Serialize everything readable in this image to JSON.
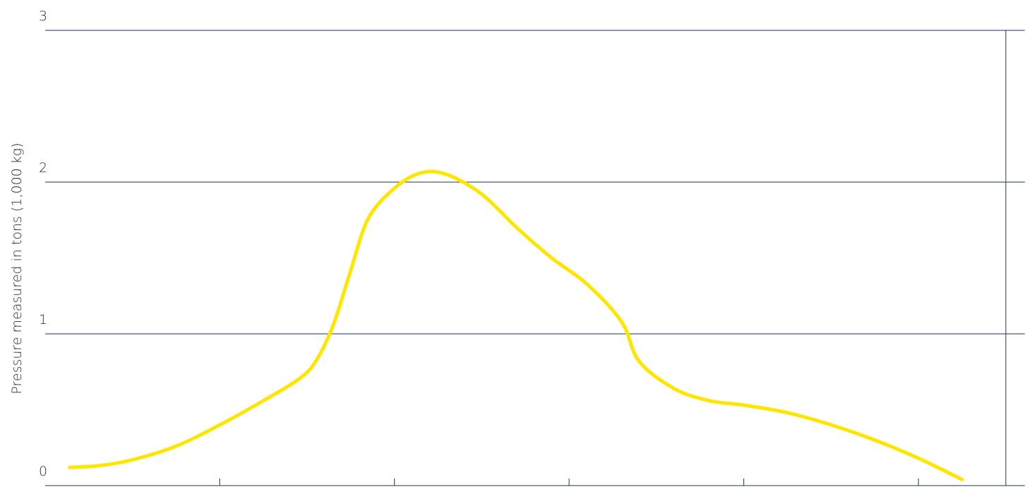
{
  "chart_data": {
    "type": "line",
    "title": "",
    "xlabel": "",
    "ylabel": "Pressure measured in tons (1,000 kg)",
    "ylim": [
      0,
      3
    ],
    "xlim": [
      0,
      11
    ],
    "yticks": [
      {
        "value": 0,
        "label": "0"
      },
      {
        "value": 1,
        "label": "1"
      },
      {
        "value": 2,
        "label": "2"
      },
      {
        "value": 3,
        "label": "3"
      }
    ],
    "xticks": [
      2,
      4,
      6,
      8,
      10
    ],
    "grid": true,
    "colors": {
      "series": "#ffe600",
      "grid": "#1d3550",
      "text": "#2b2b2b"
    },
    "series": [
      {
        "values": [
          [
            0.28,
            0.12
          ],
          [
            0.6,
            0.13
          ],
          [
            1.0,
            0.17
          ],
          [
            1.5,
            0.26
          ],
          [
            2.0,
            0.4
          ],
          [
            2.5,
            0.56
          ],
          [
            2.9,
            0.7
          ],
          [
            3.1,
            0.82
          ],
          [
            3.3,
            1.06
          ],
          [
            3.5,
            1.42
          ],
          [
            3.7,
            1.76
          ],
          [
            4.0,
            1.96
          ],
          [
            4.3,
            2.06
          ],
          [
            4.6,
            2.05
          ],
          [
            5.0,
            1.92
          ],
          [
            5.4,
            1.7
          ],
          [
            5.8,
            1.5
          ],
          [
            6.2,
            1.33
          ],
          [
            6.6,
            1.08
          ],
          [
            6.8,
            0.82
          ],
          [
            7.2,
            0.64
          ],
          [
            7.6,
            0.56
          ],
          [
            8.0,
            0.53
          ],
          [
            8.5,
            0.48
          ],
          [
            9.0,
            0.4
          ],
          [
            9.5,
            0.3
          ],
          [
            10.0,
            0.18
          ],
          [
            10.5,
            0.04
          ]
        ]
      }
    ]
  }
}
